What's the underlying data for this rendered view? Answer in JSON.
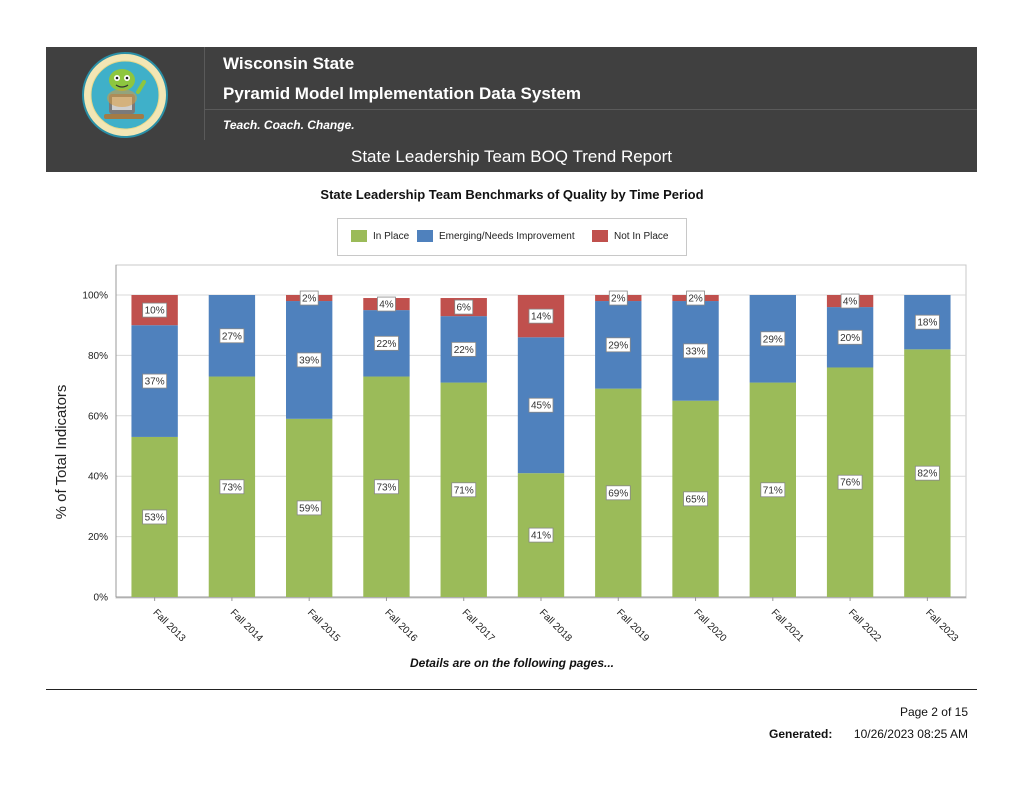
{
  "header": {
    "state": "Wisconsin State",
    "system": "Pyramid Model Implementation Data System",
    "tagline": "Teach. Coach. Change.",
    "report_title": "State Leadership Team BOQ Trend Report"
  },
  "colors": {
    "in_place": "#9bbb59",
    "emerging": "#4f81bd",
    "not_in_place": "#c0504d",
    "banner": "#404040"
  },
  "chart_data": {
    "type": "bar",
    "stacked": true,
    "title": "State Leadership Team Benchmarks of Quality by Time Period",
    "ylabel": "% of Total Indicators",
    "xlabel": "",
    "ylim": [
      0,
      100
    ],
    "yticks": [
      "0%",
      "20%",
      "40%",
      "60%",
      "80%",
      "100%"
    ],
    "grid": true,
    "legend_position": "top-center",
    "categories": [
      "Fall 2013",
      "Fall 2014",
      "Fall 2015",
      "Fall 2016",
      "Fall 2017",
      "Fall 2018",
      "Fall 2019",
      "Fall 2020",
      "Fall 2021",
      "Fall 2022",
      "Fall 2023"
    ],
    "series": [
      {
        "name": "In Place",
        "values": [
          53,
          73,
          59,
          73,
          71,
          41,
          69,
          65,
          71,
          76,
          82
        ]
      },
      {
        "name": "Emerging/Needs Improvement",
        "values": [
          37,
          27,
          39,
          22,
          22,
          45,
          29,
          33,
          29,
          20,
          18
        ]
      },
      {
        "name": "Not In Place",
        "values": [
          10,
          0,
          2,
          4,
          6,
          14,
          2,
          2,
          0,
          4,
          0
        ]
      }
    ]
  },
  "note": "Details are on the following pages...",
  "footer": {
    "page": "Page 2 of 15",
    "generated_label": "Generated:",
    "generated_value": "10/26/2023 08:25 AM"
  }
}
